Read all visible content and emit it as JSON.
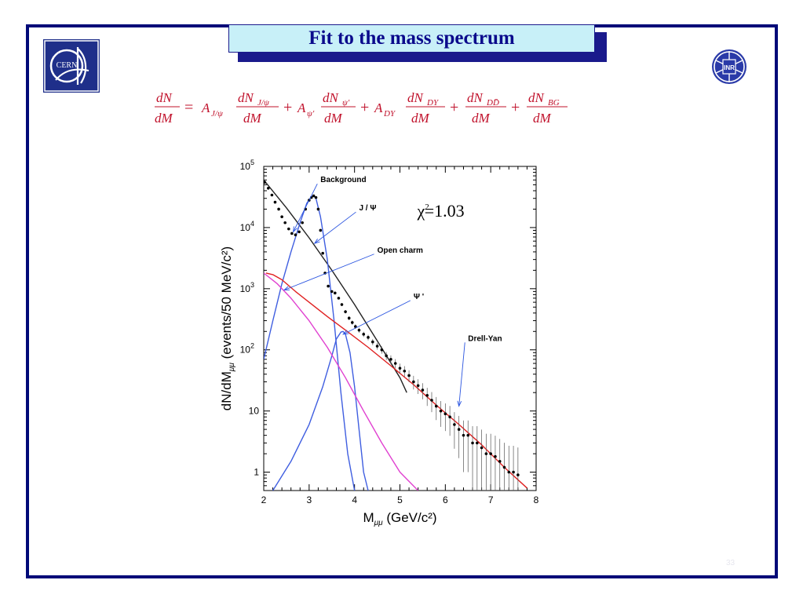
{
  "slide": {
    "title": "Fit to the mass spectrum",
    "page_number": "33",
    "colors": {
      "frame": "#000a78",
      "title_bg": "#c8f0f8",
      "title_text": "#0a0a8c",
      "equation": "#c0102a"
    }
  },
  "logos": {
    "left": "CERN",
    "right": "INR"
  },
  "equation": {
    "lhs_num": "dN",
    "lhs_den": "dM",
    "terms": [
      {
        "coef": "A",
        "coef_sub": "J/ψ",
        "num": "dN",
        "num_sub": "J/ψ",
        "den": "dM"
      },
      {
        "coef": "A",
        "coef_sub": "ψ'",
        "num": "dN",
        "num_sub": "ψ'",
        "den": "dM"
      },
      {
        "coef": "A",
        "coef_sub": "DY",
        "num": "dN",
        "num_sub": "DY",
        "den": "dM"
      },
      {
        "coef": "",
        "coef_sub": "",
        "num": "dN",
        "num_sub": "DD̄",
        "den": "dM"
      },
      {
        "coef": "",
        "coef_sub": "",
        "num": "dN",
        "num_sub": "BG",
        "den": "dM"
      }
    ]
  },
  "chart_data": {
    "type": "scatter",
    "xlabel": "M",
    "xlabel_sub": "μμ",
    "xlabel_unit": " (GeV/c²)",
    "ylabel": "dN/dM",
    "ylabel_sub": "μμ",
    "ylabel_unit": " (events/50 MeV/c²)",
    "xlim": [
      2,
      8
    ],
    "ylim": [
      0.5,
      100000
    ],
    "yscale": "log",
    "x_ticks": [
      2,
      3,
      4,
      5,
      6,
      7,
      8
    ],
    "y_tick_labels": [
      {
        "value": 1,
        "mant": "1",
        "exp": ""
      },
      {
        "value": 10,
        "mant": "10",
        "exp": ""
      },
      {
        "value": 100,
        "mant": "10",
        "exp": "2"
      },
      {
        "value": 1000,
        "mant": "10",
        "exp": "3"
      },
      {
        "value": 10000,
        "mant": "10",
        "exp": "4"
      },
      {
        "value": 100000,
        "mant": "10",
        "exp": "5"
      }
    ],
    "fit_quality": {
      "text": "χ",
      "sup": "2",
      "value": "=1.03"
    },
    "annotations": [
      {
        "text": "Background",
        "x": 3.25,
        "y": 55000,
        "arrow_to": [
          2.65,
          8500
        ]
      },
      {
        "text": "J / Ψ",
        "x": 4.1,
        "y": 19000,
        "arrow_to": [
          3.12,
          5500
        ]
      },
      {
        "text": "Open charm",
        "x": 4.5,
        "y": 3900,
        "arrow_to": [
          2.45,
          950
        ]
      },
      {
        "text": "Ψ '",
        "x": 5.3,
        "y": 680,
        "arrow_to": [
          3.75,
          180
        ]
      },
      {
        "text": "Drell-Yan",
        "x": 6.5,
        "y": 140,
        "arrow_to": [
          6.3,
          12
        ]
      }
    ],
    "series": [
      {
        "kind": "data",
        "x": [
          2.02,
          2.1,
          2.18,
          2.25,
          2.33,
          2.4,
          2.47,
          2.55,
          2.62,
          2.7,
          2.78,
          2.85,
          2.92,
          3.0,
          3.05,
          3.1,
          3.15,
          3.2,
          3.25,
          3.3,
          3.35,
          3.42,
          3.5,
          3.57,
          3.65,
          3.72,
          3.8,
          3.88,
          3.95,
          4.02,
          4.1,
          4.2,
          4.3,
          4.4,
          4.5,
          4.6,
          4.7,
          4.8,
          4.9,
          5.0,
          5.1,
          5.2,
          5.3,
          5.4,
          5.5,
          5.6,
          5.7,
          5.8,
          5.9,
          6.0,
          6.1,
          6.2,
          6.3,
          6.4,
          6.5,
          6.6,
          6.7,
          6.8,
          6.9,
          7.0,
          7.1,
          7.2,
          7.3,
          7.4,
          7.5,
          7.6
        ],
        "y": [
          55000,
          44000,
          34000,
          26000,
          20000,
          15000,
          12000,
          9500,
          8000,
          7600,
          8500,
          12000,
          20000,
          28000,
          31000,
          33000,
          31000,
          20000,
          9000,
          3800,
          1800,
          1100,
          900,
          850,
          700,
          550,
          420,
          330,
          280,
          240,
          210,
          180,
          160,
          135,
          115,
          100,
          80,
          70,
          60,
          50,
          45,
          38,
          30,
          26,
          22,
          18,
          15,
          12,
          10,
          9,
          8,
          6,
          5,
          4,
          4,
          3,
          3,
          2.5,
          2,
          2,
          1.8,
          1.5,
          1.2,
          1,
          1,
          0.9
        ]
      },
      {
        "kind": "fit",
        "name": "Background",
        "color": "#222222",
        "x": [
          2.0,
          2.5,
          3.0,
          3.5,
          4.0,
          4.5,
          5.0,
          5.15
        ],
        "y": [
          60000,
          21000,
          6800,
          2000,
          550,
          140,
          35,
          20
        ]
      },
      {
        "kind": "fit",
        "name": "J / Ψ",
        "color": "#3f5ee0",
        "x": [
          2.0,
          2.2,
          2.4,
          2.6,
          2.8,
          2.95,
          3.05,
          3.1,
          3.15,
          3.25,
          3.4,
          3.55,
          3.7,
          3.85,
          4.0
        ],
        "y": [
          70,
          300,
          1200,
          4000,
          12000,
          25000,
          32000,
          33000,
          30000,
          15000,
          3000,
          300,
          20,
          2,
          0.5
        ]
      },
      {
        "kind": "fit",
        "name": "Ψ '",
        "color": "#3f5ee0",
        "x": [
          2.2,
          2.6,
          3.0,
          3.3,
          3.5,
          3.6,
          3.7,
          3.75,
          3.8,
          3.9,
          4.0,
          4.1,
          4.2,
          4.3
        ],
        "y": [
          0.5,
          1.5,
          6,
          25,
          80,
          150,
          195,
          200,
          180,
          90,
          25,
          5,
          1,
          0.5
        ]
      },
      {
        "kind": "fit",
        "name": "Open charm",
        "color": "#e040d0",
        "x": [
          2.0,
          2.3,
          2.6,
          3.0,
          3.4,
          3.8,
          4.2,
          4.6,
          5.0,
          5.4
        ],
        "y": [
          1800,
          1200,
          700,
          300,
          110,
          35,
          10,
          3,
          1,
          0.5
        ]
      },
      {
        "kind": "fit",
        "name": "Drell-Yan",
        "color": "#e02020",
        "x": [
          2.05,
          2.2,
          2.4,
          2.7,
          3.0,
          3.4,
          3.8,
          4.3,
          4.8,
          5.3,
          5.8,
          6.3,
          6.8,
          7.3,
          7.8
        ],
        "y": [
          1800,
          1700,
          1400,
          900,
          600,
          350,
          210,
          110,
          55,
          27,
          12.5,
          6,
          2.8,
          1.2,
          0.55
        ]
      }
    ]
  }
}
